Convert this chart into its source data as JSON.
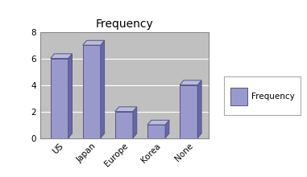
{
  "categories": [
    "US",
    "Japan",
    "Europe",
    "Korea",
    "None"
  ],
  "values": [
    6,
    7,
    2,
    1,
    4
  ],
  "bar_color_face": "#9999cc",
  "bar_color_side": "#6666aa",
  "bar_color_top": "#bbbbdd",
  "bar_edge_color": "#555588",
  "title": "Frequency",
  "title_fontsize": 10,
  "ylim": [
    0,
    8
  ],
  "yticks": [
    0,
    2,
    4,
    6,
    8
  ],
  "legend_label": "Frequency",
  "figure_bg_color": "#ffffff",
  "plot_bg_color": "#c0c0c0",
  "plot_top_color": "#d8d8d8",
  "outer_bg": "#ffffff",
  "depth": 6,
  "bar_width": 0.55
}
